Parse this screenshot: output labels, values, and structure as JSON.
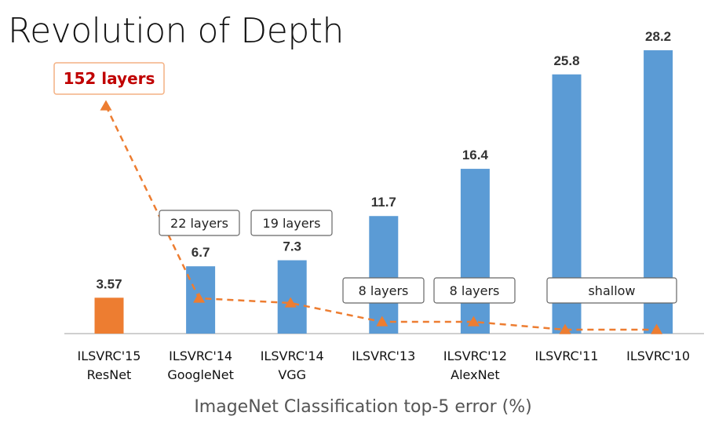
{
  "chart_data": {
    "type": "bar",
    "title": "Revolution of Depth",
    "xlabel": "ImageNet Classification top-5 error (%)",
    "ylim": [
      0,
      30
    ],
    "categories": [
      [
        "ILSVRC'15",
        "ResNet"
      ],
      [
        "ILSVRC'14",
        "GoogleNet"
      ],
      [
        "ILSVRC'14",
        "VGG"
      ],
      [
        "ILSVRC'13",
        ""
      ],
      [
        "ILSVRC'12",
        "AlexNet"
      ],
      [
        "ILSVRC'11",
        ""
      ],
      [
        "ILSVRC'10",
        ""
      ]
    ],
    "values": [
      3.57,
      6.7,
      7.3,
      11.7,
      16.4,
      25.8,
      28.2
    ],
    "value_labels": [
      "3.57",
      "6.7",
      "7.3",
      "11.7",
      "16.4",
      "25.8",
      "28.2"
    ],
    "bar_colors": [
      "#ED7D31",
      "#5B9BD5",
      "#5B9BD5",
      "#5B9BD5",
      "#5B9BD5",
      "#5B9BD5",
      "#5B9BD5"
    ],
    "depth_line": {
      "color": "#ED7D31",
      "style": "dashed",
      "values": [
        152,
        22,
        19,
        8,
        8,
        1,
        1
      ]
    },
    "layer_annotations": [
      {
        "text": "152 layers",
        "highlight": true,
        "over": [
          0
        ]
      },
      {
        "text": "22 layers",
        "highlight": false,
        "over": [
          1
        ]
      },
      {
        "text": "19 layers",
        "highlight": false,
        "over": [
          2
        ]
      },
      {
        "text": "8 layers",
        "highlight": false,
        "over": [
          3
        ]
      },
      {
        "text": "8 layers",
        "highlight": false,
        "over": [
          4
        ]
      },
      {
        "text": "shallow",
        "highlight": false,
        "over": [
          5,
          6
        ]
      }
    ],
    "grid": false,
    "legend": "none"
  }
}
